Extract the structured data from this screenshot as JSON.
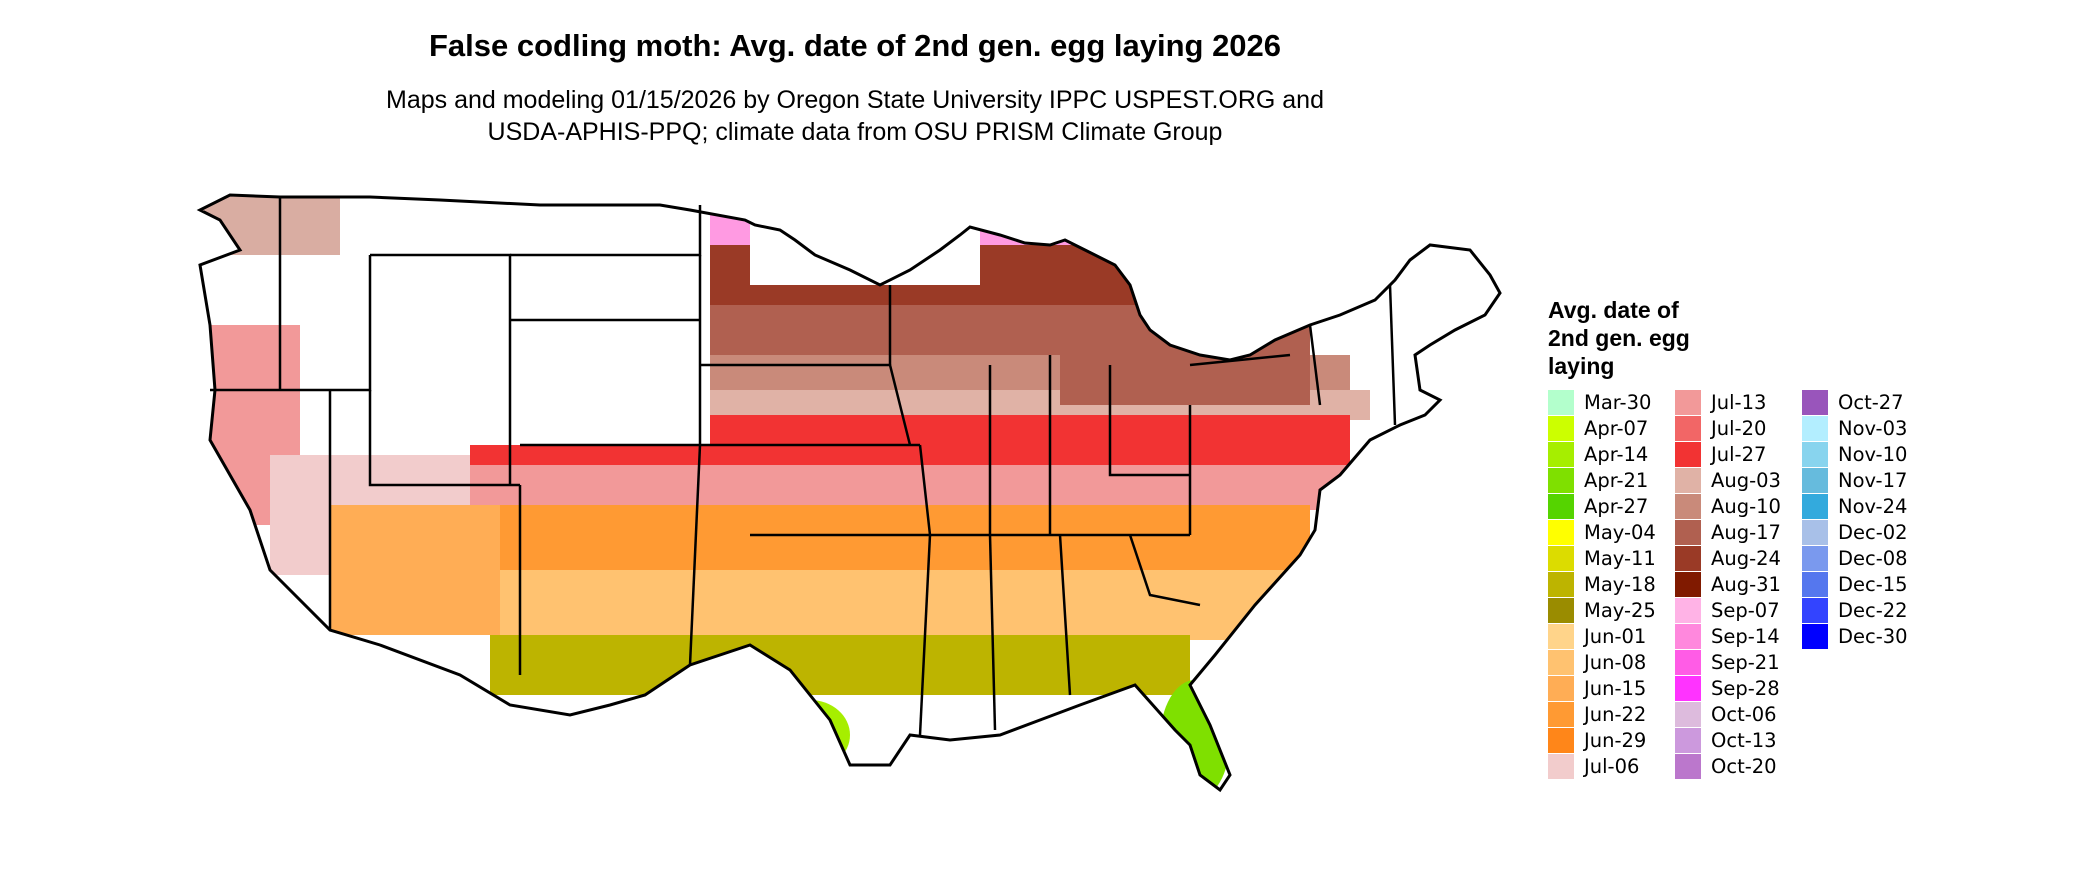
{
  "title": "False codling moth: Avg. date of 2nd gen. egg laying 2026",
  "subtitle_line1": "Maps and modeling 01/15/2026 by Oregon State University IPPC USPEST.ORG and",
  "subtitle_line2": "USDA-APHIS-PPQ; climate data from OSU PRISM Climate Group",
  "legend": {
    "title_lines": [
      "Avg. date of",
      "2nd gen. egg",
      "laying"
    ],
    "items": [
      {
        "label": "Mar-30",
        "color": "#b3ffcc"
      },
      {
        "label": "Apr-07",
        "color": "#ccff00"
      },
      {
        "label": "Apr-14",
        "color": "#a6ee00"
      },
      {
        "label": "Apr-21",
        "color": "#7fe000"
      },
      {
        "label": "Apr-27",
        "color": "#55d400"
      },
      {
        "label": "May-04",
        "color": "#ffff00"
      },
      {
        "label": "May-11",
        "color": "#dcdc00"
      },
      {
        "label": "May-18",
        "color": "#bdb400"
      },
      {
        "label": "May-25",
        "color": "#9a8c00"
      },
      {
        "label": "Jun-01",
        "color": "#ffd48a"
      },
      {
        "label": "Jun-08",
        "color": "#ffc270"
      },
      {
        "label": "Jun-15",
        "color": "#ffad55"
      },
      {
        "label": "Jun-22",
        "color": "#ff9a33"
      },
      {
        "label": "Jun-29",
        "color": "#ff8619"
      },
      {
        "label": "Jul-06",
        "color": "#f2cccc"
      },
      {
        "label": "Jul-13",
        "color": "#f29999"
      },
      {
        "label": "Jul-20",
        "color": "#f26666"
      },
      {
        "label": "Jul-27",
        "color": "#f23333"
      },
      {
        "label": "Aug-03",
        "color": "#e0b2a6"
      },
      {
        "label": "Aug-10",
        "color": "#c98a7a"
      },
      {
        "label": "Aug-17",
        "color": "#b06050"
      },
      {
        "label": "Aug-24",
        "color": "#9a3a26"
      },
      {
        "label": "Aug-31",
        "color": "#801a00"
      },
      {
        "label": "Sep-07",
        "color": "#ffb3e6"
      },
      {
        "label": "Sep-14",
        "color": "#ff88dd"
      },
      {
        "label": "Sep-21",
        "color": "#ff5ce6"
      },
      {
        "label": "Sep-28",
        "color": "#ff33ff"
      },
      {
        "label": "Oct-06",
        "color": "#ddbbdd"
      },
      {
        "label": "Oct-13",
        "color": "#cc99dd"
      },
      {
        "label": "Oct-20",
        "color": "#bb77cc"
      },
      {
        "label": "Oct-27",
        "color": "#9955bb"
      },
      {
        "label": "Nov-03",
        "color": "#b3eeff"
      },
      {
        "label": "Nov-10",
        "color": "#88d4ee"
      },
      {
        "label": "Nov-17",
        "color": "#66bbdd"
      },
      {
        "label": "Nov-24",
        "color": "#33aadd"
      },
      {
        "label": "Dec-02",
        "color": "#a8c0e8"
      },
      {
        "label": "Dec-08",
        "color": "#7a99ee"
      },
      {
        "label": "Dec-15",
        "color": "#5577ee"
      },
      {
        "label": "Dec-22",
        "color": "#3344ff"
      },
      {
        "label": "Dec-30",
        "color": "#0000ff"
      }
    ]
  }
}
